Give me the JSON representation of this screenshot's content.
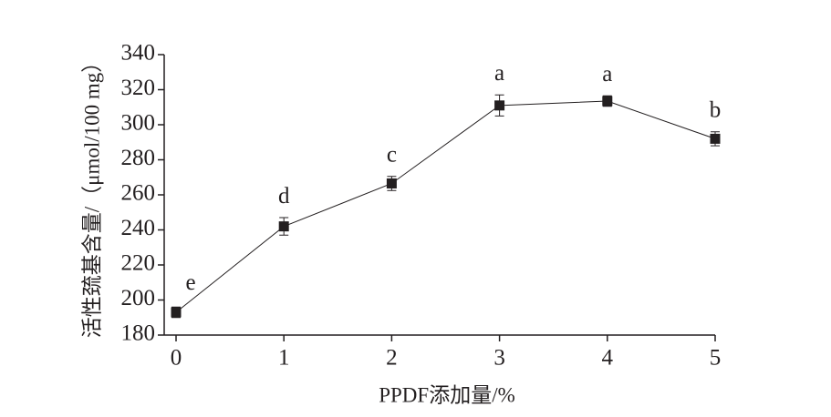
{
  "chart_data": {
    "type": "line",
    "xlabel": "PPDF添加量/%",
    "ylabel": "活性巯基含量/（μmol/100 mg）",
    "x": [
      0,
      1,
      2,
      3,
      4,
      5
    ],
    "series": [
      {
        "color": "#231f20",
        "marker": "square",
        "values": [
          193,
          242,
          266.5,
          311,
          313.5,
          292
        ],
        "errors": [
          3,
          5,
          4,
          6,
          3,
          4
        ],
        "labels": [
          "e",
          "d",
          "c",
          "a",
          "a",
          "b"
        ]
      }
    ],
    "xlim": [
      0,
      5
    ],
    "xticks": [
      0,
      1,
      2,
      3,
      4,
      5
    ],
    "ylim": [
      180,
      340
    ],
    "yticks": [
      180,
      200,
      220,
      240,
      260,
      280,
      300,
      320,
      340
    ],
    "grid": false
  }
}
